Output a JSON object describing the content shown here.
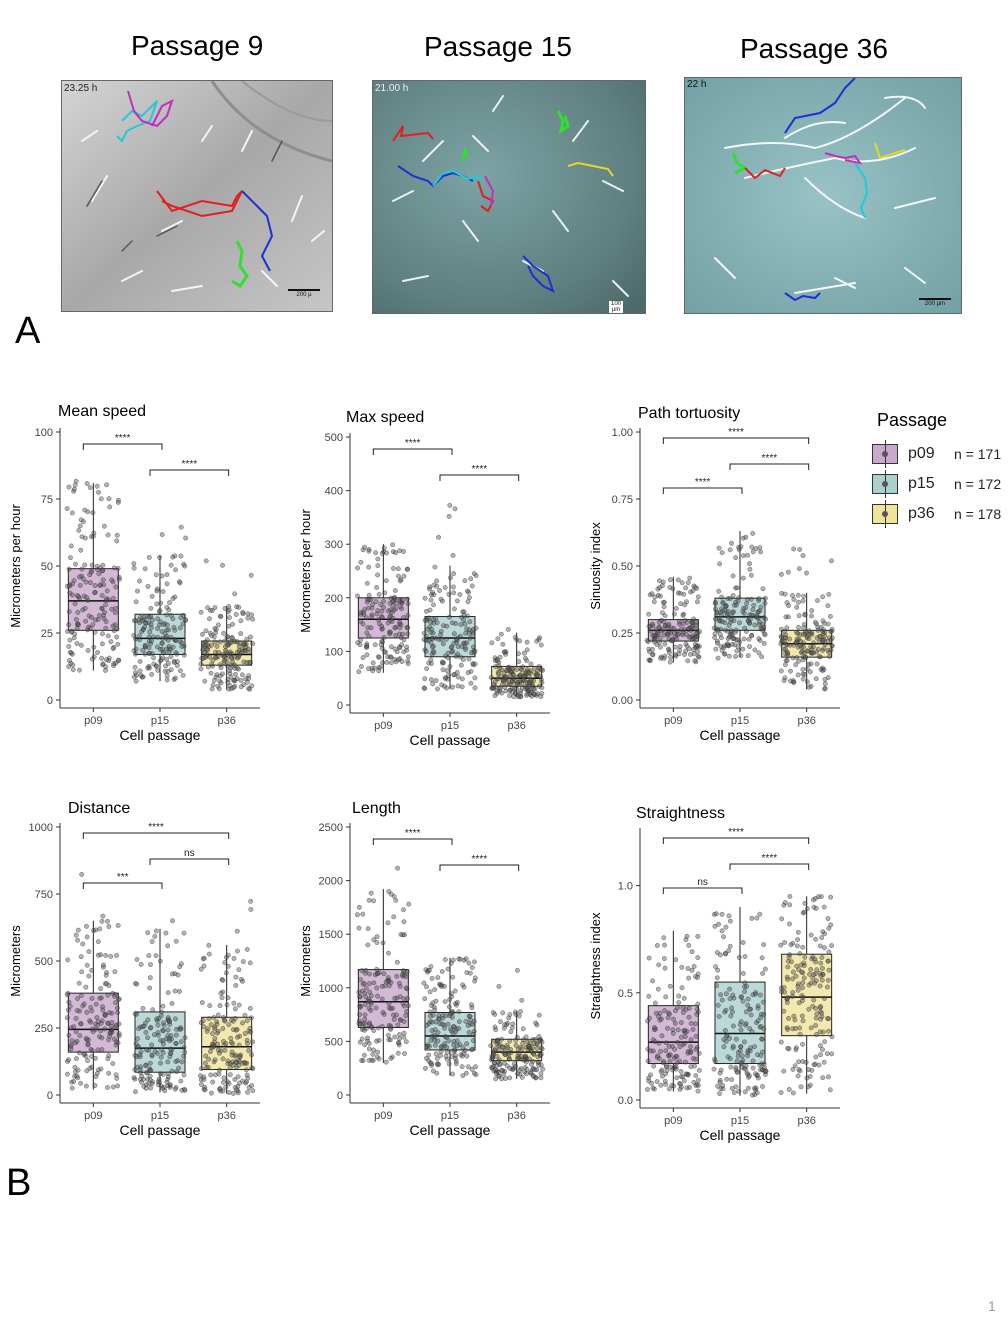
{
  "panel_a": {
    "letter": "A",
    "titles": [
      "Passage 9",
      "Passage 15",
      "Passage 36"
    ],
    "images": [
      {
        "timestamp": "23.25 h",
        "scale": "200 µ",
        "bg": "#b7b7b7"
      },
      {
        "timestamp": "21.00 h",
        "scale": "100 µm",
        "bg": "#7ea0a0"
      },
      {
        "timestamp": "22 h",
        "scale": "200 µm",
        "bg": "#88b3b8"
      }
    ]
  },
  "panel_b": {
    "letter": "B"
  },
  "legend": {
    "title": "Passage",
    "items": [
      {
        "label": "p09",
        "n": "n = 171",
        "color": "#c8a8cc"
      },
      {
        "label": "p15",
        "n": "n = 172",
        "color": "#a9d0ce"
      },
      {
        "label": "p36",
        "n": "n = 178",
        "color": "#f0e39a"
      }
    ]
  },
  "page_number": "1",
  "chart_data": [
    {
      "type": "box",
      "title": "Mean speed",
      "xlabel": "Cell passage",
      "ylabel": "Micrometers per hour",
      "categories": [
        "p09",
        "p15",
        "p36"
      ],
      "ylim": [
        0,
        100
      ],
      "yticks": [
        0,
        25,
        50,
        75,
        100
      ],
      "boxes": [
        {
          "whisker_low": 11,
          "q1": 26,
          "median": 37,
          "q3": 49,
          "whisker_high": 81
        },
        {
          "whisker_low": 7,
          "q1": 17,
          "median": 23,
          "q3": 32,
          "whisker_high": 54
        },
        {
          "whisker_low": 4,
          "q1": 13,
          "median": 17,
          "q3": 22,
          "whisker_high": 35
        }
      ],
      "points_range": [
        [
          12,
          90
        ],
        [
          5,
          65
        ],
        [
          4,
          52
        ]
      ],
      "significance": [
        {
          "from": 0,
          "to": 1,
          "label": "****"
        },
        {
          "from": 1,
          "to": 2,
          "label": "****"
        }
      ]
    },
    {
      "type": "box",
      "title": "Max speed",
      "xlabel": "Cell passage",
      "ylabel": "Micrometers per hour",
      "categories": [
        "p09",
        "p15",
        "p36"
      ],
      "ylim": [
        0,
        500
      ],
      "yticks": [
        0,
        100,
        200,
        300,
        400,
        500
      ],
      "boxes": [
        {
          "whisker_low": 60,
          "q1": 125,
          "median": 160,
          "q3": 200,
          "whisker_high": 300
        },
        {
          "whisker_low": 30,
          "q1": 90,
          "median": 125,
          "q3": 165,
          "whisker_high": 260
        },
        {
          "whisker_low": 15,
          "q1": 35,
          "median": 50,
          "q3": 72,
          "whisker_high": 135
        }
      ],
      "points_range": [
        [
          50,
          355
        ],
        [
          25,
          380
        ],
        [
          15,
          150
        ]
      ],
      "significance": [
        {
          "from": 0,
          "to": 1,
          "label": "****"
        },
        {
          "from": 1,
          "to": 2,
          "label": "****"
        }
      ]
    },
    {
      "type": "box",
      "title": "Path tortuosity",
      "xlabel": "Cell passage",
      "ylabel": "Sinuosity index",
      "categories": [
        "p09",
        "p15",
        "p36"
      ],
      "ylim": [
        0,
        1.0
      ],
      "yticks": [
        0.0,
        0.25,
        0.5,
        0.75,
        1.0
      ],
      "ytick_labels": [
        "0.00",
        "0.25",
        "0.50",
        "0.75",
        "1.00"
      ],
      "boxes": [
        {
          "whisker_low": 0.14,
          "q1": 0.22,
          "median": 0.26,
          "q3": 0.3,
          "whisker_high": 0.46
        },
        {
          "whisker_low": 0.16,
          "q1": 0.26,
          "median": 0.31,
          "q3": 0.38,
          "whisker_high": 0.63
        },
        {
          "whisker_low": 0.04,
          "q1": 0.16,
          "median": 0.21,
          "q3": 0.26,
          "whisker_high": 0.4
        }
      ],
      "points_range": [
        [
          0.14,
          0.46
        ],
        [
          0.15,
          0.65
        ],
        [
          0.04,
          0.57
        ]
      ],
      "significance": [
        {
          "from": 0,
          "to": 1,
          "label": "****"
        },
        {
          "from": 1,
          "to": 2,
          "label": "****"
        },
        {
          "from": 0,
          "to": 2,
          "label": "****"
        }
      ]
    },
    {
      "type": "box",
      "title": "Distance",
      "xlabel": "Cell passage",
      "ylabel": "Micrometers",
      "categories": [
        "p09",
        "p15",
        "p36"
      ],
      "ylim": [
        0,
        1000
      ],
      "yticks": [
        0,
        250,
        500,
        750,
        1000
      ],
      "boxes": [
        {
          "whisker_low": 20,
          "q1": 160,
          "median": 245,
          "q3": 380,
          "whisker_high": 650
        },
        {
          "whisker_low": 10,
          "q1": 85,
          "median": 175,
          "q3": 310,
          "whisker_high": 620
        },
        {
          "whisker_low": 5,
          "q1": 95,
          "median": 180,
          "q3": 290,
          "whisker_high": 560
        }
      ],
      "points_range": [
        [
          20,
          840
        ],
        [
          10,
          710
        ],
        [
          5,
          740
        ]
      ],
      "significance": [
        {
          "from": 0,
          "to": 1,
          "label": "***"
        },
        {
          "from": 0,
          "to": 2,
          "label": "****"
        },
        {
          "from": 1,
          "to": 2,
          "label": "ns"
        }
      ]
    },
    {
      "type": "box",
      "title": "Length",
      "xlabel": "Cell passage",
      "ylabel": "Micrometers",
      "categories": [
        "p09",
        "p15",
        "p36"
      ],
      "ylim": [
        0,
        2500
      ],
      "yticks": [
        0,
        500,
        1000,
        1500,
        2000,
        2500
      ],
      "boxes": [
        {
          "whisker_low": 300,
          "q1": 630,
          "median": 870,
          "q3": 1170,
          "whisker_high": 1920
        },
        {
          "whisker_low": 180,
          "q1": 420,
          "median": 550,
          "q3": 770,
          "whisker_high": 1280
        },
        {
          "whisker_low": 150,
          "q1": 320,
          "median": 400,
          "q3": 520,
          "whisker_high": 780
        }
      ],
      "points_range": [
        [
          290,
          2150
        ],
        [
          170,
          1560
        ],
        [
          140,
          1240
        ]
      ],
      "significance": [
        {
          "from": 0,
          "to": 1,
          "label": "****"
        },
        {
          "from": 1,
          "to": 2,
          "label": "****"
        }
      ]
    },
    {
      "type": "box",
      "title": "Straightness",
      "xlabel": "Cell passage",
      "ylabel": "Straightness index",
      "categories": [
        "p09",
        "p15",
        "p36"
      ],
      "ylim": [
        0,
        1.25
      ],
      "yticks": [
        0.0,
        0.5,
        1.0
      ],
      "ytick_labels": [
        "0.0",
        "0.5",
        "1.0"
      ],
      "boxes": [
        {
          "whisker_low": 0.04,
          "q1": 0.17,
          "median": 0.27,
          "q3": 0.44,
          "whisker_high": 0.79
        },
        {
          "whisker_low": 0.02,
          "q1": 0.17,
          "median": 0.31,
          "q3": 0.55,
          "whisker_high": 0.9
        },
        {
          "whisker_low": 0.03,
          "q1": 0.3,
          "median": 0.48,
          "q3": 0.68,
          "whisker_high": 0.95
        }
      ],
      "points_range": [
        [
          0.03,
          0.93
        ],
        [
          0.02,
          0.92
        ],
        [
          0.02,
          0.95
        ]
      ],
      "significance": [
        {
          "from": 0,
          "to": 1,
          "label": "ns"
        },
        {
          "from": 1,
          "to": 2,
          "label": "****"
        },
        {
          "from": 0,
          "to": 2,
          "label": "****"
        }
      ]
    }
  ]
}
